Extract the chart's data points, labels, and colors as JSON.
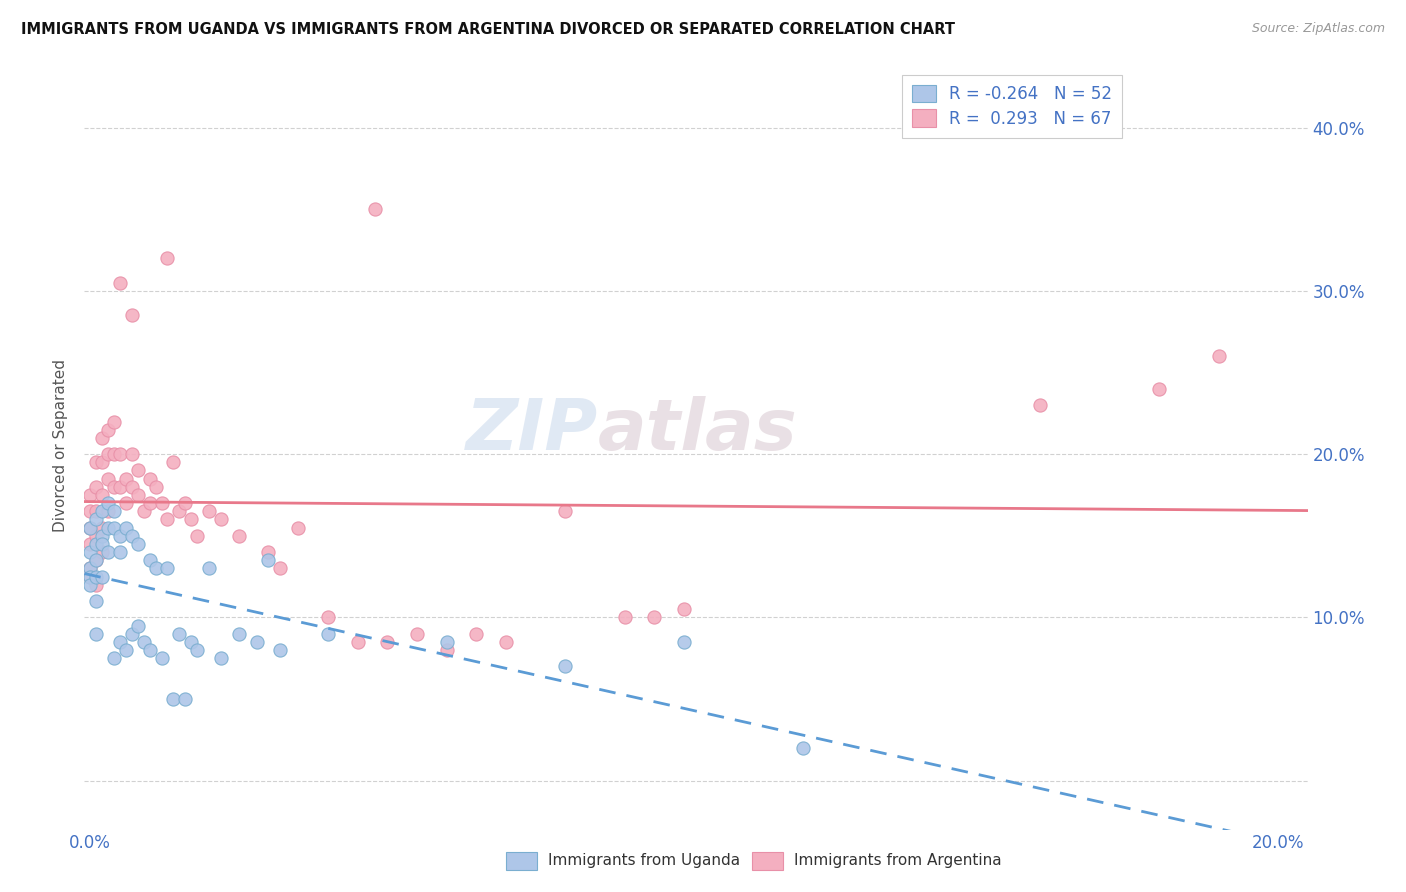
{
  "title": "IMMIGRANTS FROM UGANDA VS IMMIGRANTS FROM ARGENTINA DIVORCED OR SEPARATED CORRELATION CHART",
  "source": "Source: ZipAtlas.com",
  "ylabel": "Divorced or Separated",
  "legend_uganda": "Immigrants from Uganda",
  "legend_argentina": "Immigrants from Argentina",
  "uganda_R": -0.264,
  "uganda_N": 52,
  "argentina_R": 0.293,
  "argentina_N": 67,
  "color_uganda_fill": "#aec6e8",
  "color_argentina_fill": "#f4afc0",
  "color_uganda_edge": "#7aaed0",
  "color_argentina_edge": "#e890a8",
  "color_uganda_line": "#5b9bd5",
  "color_argentina_line": "#e8788a",
  "color_text_blue": "#4472c4",
  "color_grid": "#cccccc",
  "xlim_min": -0.001,
  "xlim_max": 0.205,
  "ylim_min": -0.03,
  "ylim_max": 0.44,
  "xtick_vals": [
    0.0,
    0.05,
    0.1,
    0.15,
    0.2
  ],
  "ytick_vals": [
    0.0,
    0.1,
    0.2,
    0.3,
    0.4
  ],
  "uganda_x": [
    0.0,
    0.0,
    0.0,
    0.0,
    0.0,
    0.001,
    0.001,
    0.001,
    0.001,
    0.001,
    0.001,
    0.002,
    0.002,
    0.002,
    0.002,
    0.003,
    0.003,
    0.003,
    0.004,
    0.004,
    0.004,
    0.005,
    0.005,
    0.005,
    0.006,
    0.006,
    0.007,
    0.007,
    0.008,
    0.008,
    0.009,
    0.01,
    0.01,
    0.011,
    0.012,
    0.013,
    0.014,
    0.015,
    0.016,
    0.017,
    0.018,
    0.02,
    0.022,
    0.025,
    0.028,
    0.03,
    0.032,
    0.04,
    0.06,
    0.08,
    0.1,
    0.12
  ],
  "uganda_y": [
    0.13,
    0.14,
    0.155,
    0.125,
    0.12,
    0.145,
    0.135,
    0.16,
    0.125,
    0.11,
    0.09,
    0.165,
    0.15,
    0.145,
    0.125,
    0.17,
    0.155,
    0.14,
    0.165,
    0.155,
    0.075,
    0.15,
    0.14,
    0.085,
    0.155,
    0.08,
    0.15,
    0.09,
    0.145,
    0.095,
    0.085,
    0.135,
    0.08,
    0.13,
    0.075,
    0.13,
    0.05,
    0.09,
    0.05,
    0.085,
    0.08,
    0.13,
    0.075,
    0.09,
    0.085,
    0.135,
    0.08,
    0.09,
    0.085,
    0.07,
    0.085,
    0.02
  ],
  "argentina_x": [
    0.0,
    0.0,
    0.0,
    0.0,
    0.0,
    0.0,
    0.001,
    0.001,
    0.001,
    0.001,
    0.001,
    0.001,
    0.002,
    0.002,
    0.002,
    0.002,
    0.002,
    0.003,
    0.003,
    0.003,
    0.003,
    0.004,
    0.004,
    0.004,
    0.005,
    0.005,
    0.006,
    0.006,
    0.007,
    0.007,
    0.008,
    0.008,
    0.009,
    0.01,
    0.01,
    0.011,
    0.012,
    0.013,
    0.014,
    0.015,
    0.016,
    0.017,
    0.018,
    0.02,
    0.022,
    0.025,
    0.03,
    0.032,
    0.035,
    0.04,
    0.045,
    0.05,
    0.055,
    0.06,
    0.065,
    0.07,
    0.08,
    0.09,
    0.095,
    0.1,
    0.048,
    0.013,
    0.005,
    0.007,
    0.16,
    0.18,
    0.19
  ],
  "argentina_y": [
    0.13,
    0.155,
    0.175,
    0.165,
    0.145,
    0.125,
    0.195,
    0.18,
    0.165,
    0.15,
    0.135,
    0.12,
    0.21,
    0.195,
    0.175,
    0.155,
    0.14,
    0.215,
    0.2,
    0.185,
    0.165,
    0.22,
    0.2,
    0.18,
    0.2,
    0.18,
    0.185,
    0.17,
    0.2,
    0.18,
    0.19,
    0.175,
    0.165,
    0.185,
    0.17,
    0.18,
    0.17,
    0.16,
    0.195,
    0.165,
    0.17,
    0.16,
    0.15,
    0.165,
    0.16,
    0.15,
    0.14,
    0.13,
    0.155,
    0.1,
    0.085,
    0.085,
    0.09,
    0.08,
    0.09,
    0.085,
    0.165,
    0.1,
    0.1,
    0.105,
    0.35,
    0.32,
    0.305,
    0.285,
    0.23,
    0.24,
    0.26
  ],
  "watermark": "ZIPatlas",
  "watermark_zip_color": "#c8d8ec",
  "watermark_atlas_color": "#d8c8d0"
}
